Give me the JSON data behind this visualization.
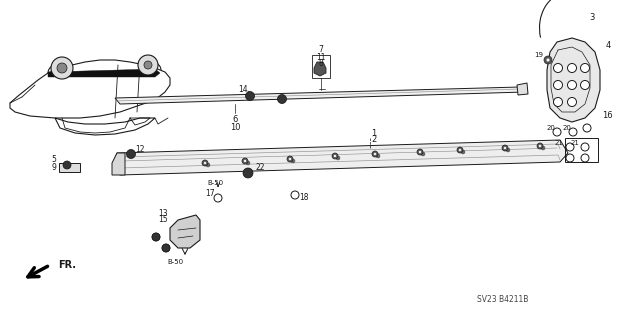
{
  "bg_color": "#ffffff",
  "line_color": "#1a1a1a",
  "fig_width": 6.4,
  "fig_height": 3.19,
  "dpi": 100,
  "watermark": "SV23 B4211B",
  "fr_label": "FR."
}
